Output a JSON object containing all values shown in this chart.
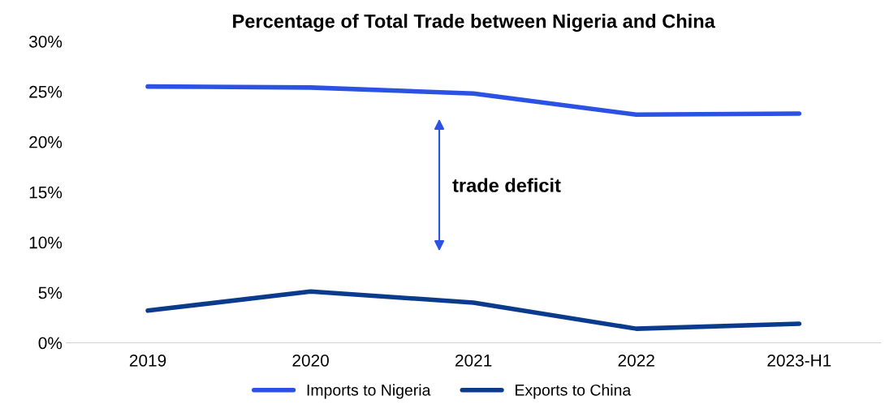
{
  "chart_data": {
    "type": "line",
    "title": "Percentage of Total Trade between Nigeria and China",
    "categories": [
      "2019",
      "2020",
      "2021",
      "2022",
      "2023-H1"
    ],
    "series": [
      {
        "name": "Imports to Nigeria",
        "color": "#2b52e3",
        "values": [
          25.5,
          25.4,
          24.8,
          22.7,
          22.8
        ]
      },
      {
        "name": "Exports to China",
        "color": "#0b3b8c",
        "values": [
          3.2,
          5.1,
          4.0,
          1.4,
          1.9
        ]
      }
    ],
    "ylim": [
      0,
      30
    ],
    "yticks": [
      {
        "value": 0,
        "label": "0%"
      },
      {
        "value": 5,
        "label": "5%"
      },
      {
        "value": 10,
        "label": "10%"
      },
      {
        "value": 15,
        "label": "15%"
      },
      {
        "value": 20,
        "label": "20%"
      },
      {
        "value": 25,
        "label": "25%"
      },
      {
        "value": 30,
        "label": "30%"
      }
    ],
    "annotations": [
      "trade deficit"
    ],
    "grid": false,
    "legend": "bottom",
    "marker": "none",
    "line_style": "solid"
  }
}
